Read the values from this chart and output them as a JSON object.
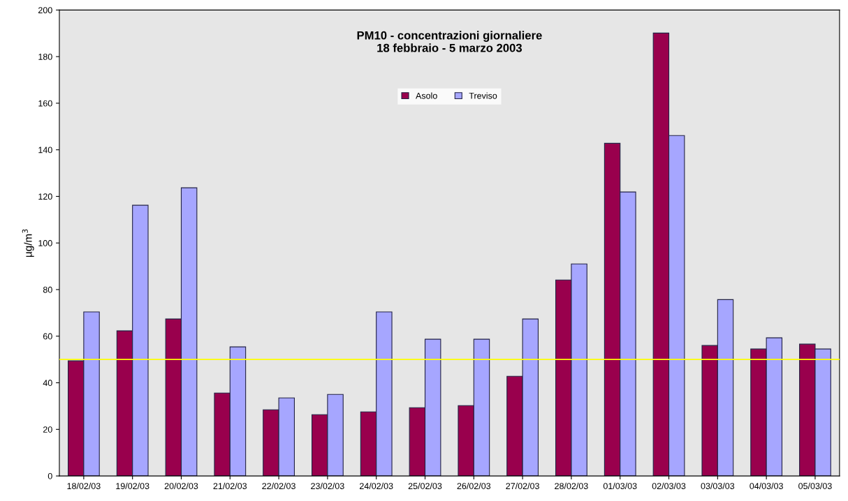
{
  "chart_data": {
    "type": "bar",
    "title": "PM10 - concentrazioni giornaliere\n18 febbraio - 5 marzo 2003",
    "ylabel": "µg/m$^{3}$",
    "categories": [
      "18/02/03",
      "19/02/03",
      "20/02/03",
      "21/02/03",
      "22/02/03",
      "23/02/03",
      "24/02/03",
      "25/02/03",
      "26/02/03",
      "27/02/03",
      "28/02/03",
      "01/03/03",
      "02/03/03",
      "03/03/03",
      "04/03/03",
      "05/03/03"
    ],
    "series": [
      {
        "name": "Asolo",
        "color": "#99004d",
        "values": [
          49.4,
          62.3,
          67.4,
          35.6,
          28.4,
          26.3,
          27.5,
          29.3,
          30.2,
          42.8,
          84.1,
          142.8,
          190.1,
          56,
          54.5,
          56.6
        ]
      },
      {
        "name": "Treviso",
        "color": "#a6a6ff",
        "values": [
          70.4,
          116.2,
          123.7,
          55.4,
          33.5,
          35,
          70.4,
          58.7,
          58.7,
          67.4,
          91,
          121.9,
          146.1,
          75.7,
          59.3,
          54.5
        ]
      }
    ],
    "ylim": [
      0,
      200
    ],
    "yticks": [
      0,
      20,
      40,
      60,
      80,
      100,
      120,
      140,
      160,
      180,
      200
    ],
    "ref_lines": [
      {
        "axis": "y",
        "value": 50,
        "color": "#ffff00"
      }
    ],
    "grid": false,
    "legend": "top"
  }
}
